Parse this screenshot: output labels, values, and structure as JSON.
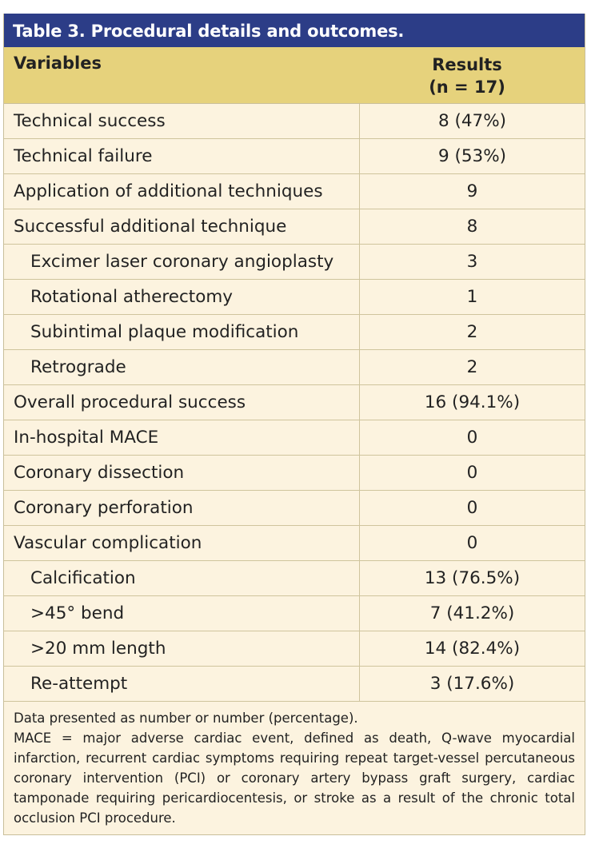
{
  "table": {
    "title": "Table 3. Procedural details and outcomes.",
    "header": {
      "variables": "Variables",
      "results_line1": "Results",
      "results_line2": "(n = 17)"
    },
    "rows": [
      {
        "label": "Technical success",
        "value": "8 (47%)"
      },
      {
        "label": "Technical failure",
        "value": "9 (53%)"
      },
      {
        "label": "Application of additional techniques",
        "value": "9"
      },
      {
        "label": "Successful additional technique",
        "value": "8"
      },
      {
        "label": "Excimer laser coronary angioplasty",
        "value": "3"
      },
      {
        "label": "Rotational atherectomy",
        "value": "1"
      },
      {
        "label": "Subintimal plaque modification",
        "value": "2"
      },
      {
        "label": "Retrograde",
        "value": "2"
      },
      {
        "label": "Overall procedural success",
        "value": "16 (94.1%)"
      },
      {
        "label": "In-hospital MACE",
        "value": "0"
      },
      {
        "label": "Coronary dissection",
        "value": "0"
      },
      {
        "label": "Coronary perforation",
        "value": "0"
      },
      {
        "label": "Vascular complication",
        "value": "0"
      },
      {
        "label": "Calcification",
        "value": "13 (76.5%)"
      },
      {
        "label": ">45° bend",
        "value": "7 (41.2%)"
      },
      {
        "label": ">20 mm length",
        "value": "14 (82.4%)"
      },
      {
        "label": "Re-attempt",
        "value": "3 (17.6%)"
      }
    ],
    "footnote": {
      "line1": "Data presented as number or number (percentage).",
      "line2": "MACE = major adverse cardiac event, defined as death, Q-wave myocardial infarction, recurrent cardiac symptoms requiring repeat target-vessel percutaneous coronary intervention (PCI) or coronary artery bypass graft surgery, cardiac tamponade requiring pericardiocentesis, or stroke as a result of the chronic total occlusion PCI procedure."
    }
  },
  "colors": {
    "title_bg": "#2c3d87",
    "header_bg": "#e6d27c",
    "body_bg": "#fcf3df"
  }
}
